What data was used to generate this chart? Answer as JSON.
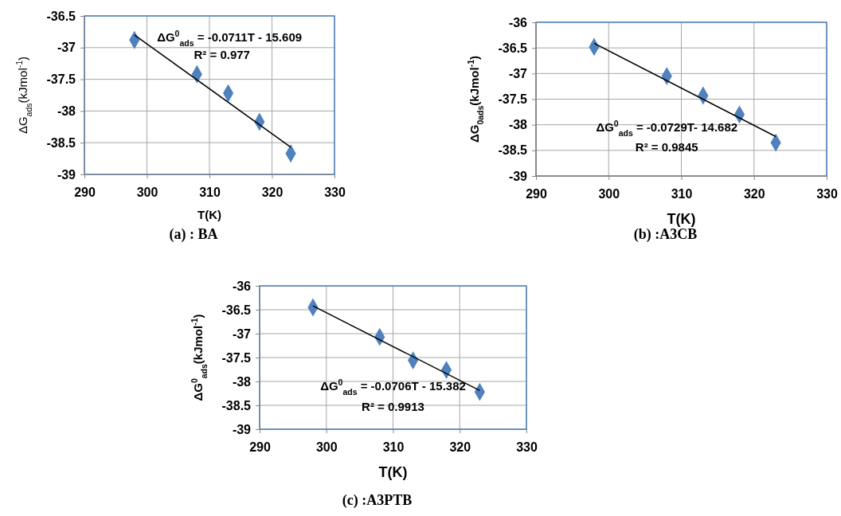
{
  "chart_data": [
    {
      "type": "scatter",
      "title": "(a) : BA",
      "xlabel": "T(K)",
      "ylabel": "ΔG$_{ads}$(kJmol$^{-1}$)",
      "xlim": [
        290,
        330
      ],
      "xticks": [
        290,
        300,
        310,
        320,
        330
      ],
      "ylim": [
        -39,
        -36.5
      ],
      "yticks": [
        -39,
        -38.5,
        -38,
        -37.5,
        -37,
        -36.5
      ],
      "grid": true,
      "series": [
        {
          "color": "#4f81bd",
          "marker": "diamond",
          "x": [
            298,
            308,
            313,
            318,
            323
          ],
          "values": [
            -36.88,
            -37.42,
            -37.72,
            -38.17,
            -38.67
          ]
        },
        {
          "type": "line",
          "color": "#000000",
          "marker": "none",
          "x": [
            298,
            323
          ],
          "values": [
            -36.8,
            -38.57
          ]
        }
      ],
      "annotations": [
        "ΔG$^{0}$$_{ads}$ = -0.0711T - 15.609",
        "R² = 0.977"
      ]
    },
    {
      "type": "scatter",
      "title": "(b) :A3CB",
      "xlabel": "T(K)",
      "ylabel": "ΔG$_{0ads}$(kJmol$^{-1}$)",
      "xlim": [
        290,
        330
      ],
      "xticks": [
        290,
        300,
        310,
        320,
        330
      ],
      "ylim": [
        -39,
        -36
      ],
      "yticks": [
        -39,
        -38.5,
        -38,
        -37.5,
        -37,
        -36.5,
        -36
      ],
      "grid": true,
      "series": [
        {
          "color": "#4f81bd",
          "marker": "diamond",
          "x": [
            298,
            308,
            313,
            318,
            323
          ],
          "values": [
            -36.48,
            -37.05,
            -37.43,
            -37.8,
            -38.35
          ]
        },
        {
          "type": "line",
          "color": "#000000",
          "marker": "none",
          "x": [
            298,
            323
          ],
          "values": [
            -36.41,
            -38.23
          ]
        }
      ],
      "annotations": [
        "ΔG$^{0}$$_{ads}$ = -0.0729T- 14.682",
        "R² = 0.9845"
      ]
    },
    {
      "type": "scatter",
      "title": "(c) :A3PTB",
      "xlabel": "T(K)",
      "ylabel": "ΔG$^{0}$$_{ads}$(kJmol$^{-1}$)",
      "xlim": [
        290,
        330
      ],
      "xticks": [
        290,
        300,
        310,
        320,
        330
      ],
      "ylim": [
        -39,
        -36
      ],
      "yticks": [
        -39,
        -38.5,
        -38,
        -37.5,
        -37,
        -36.5,
        -36
      ],
      "grid": true,
      "series": [
        {
          "color": "#4f81bd",
          "marker": "diamond",
          "x": [
            298,
            308,
            313,
            318,
            323
          ],
          "values": [
            -36.45,
            -37.07,
            -37.56,
            -37.76,
            -38.22
          ]
        },
        {
          "type": "line",
          "color": "#000000",
          "marker": "none",
          "x": [
            298,
            323
          ],
          "values": [
            -36.42,
            -38.19
          ]
        }
      ],
      "annotations": [
        "ΔG$^{0}$$_{ads}$ = -0.0706T - 15.382",
        "R² = 0.9913"
      ]
    }
  ]
}
